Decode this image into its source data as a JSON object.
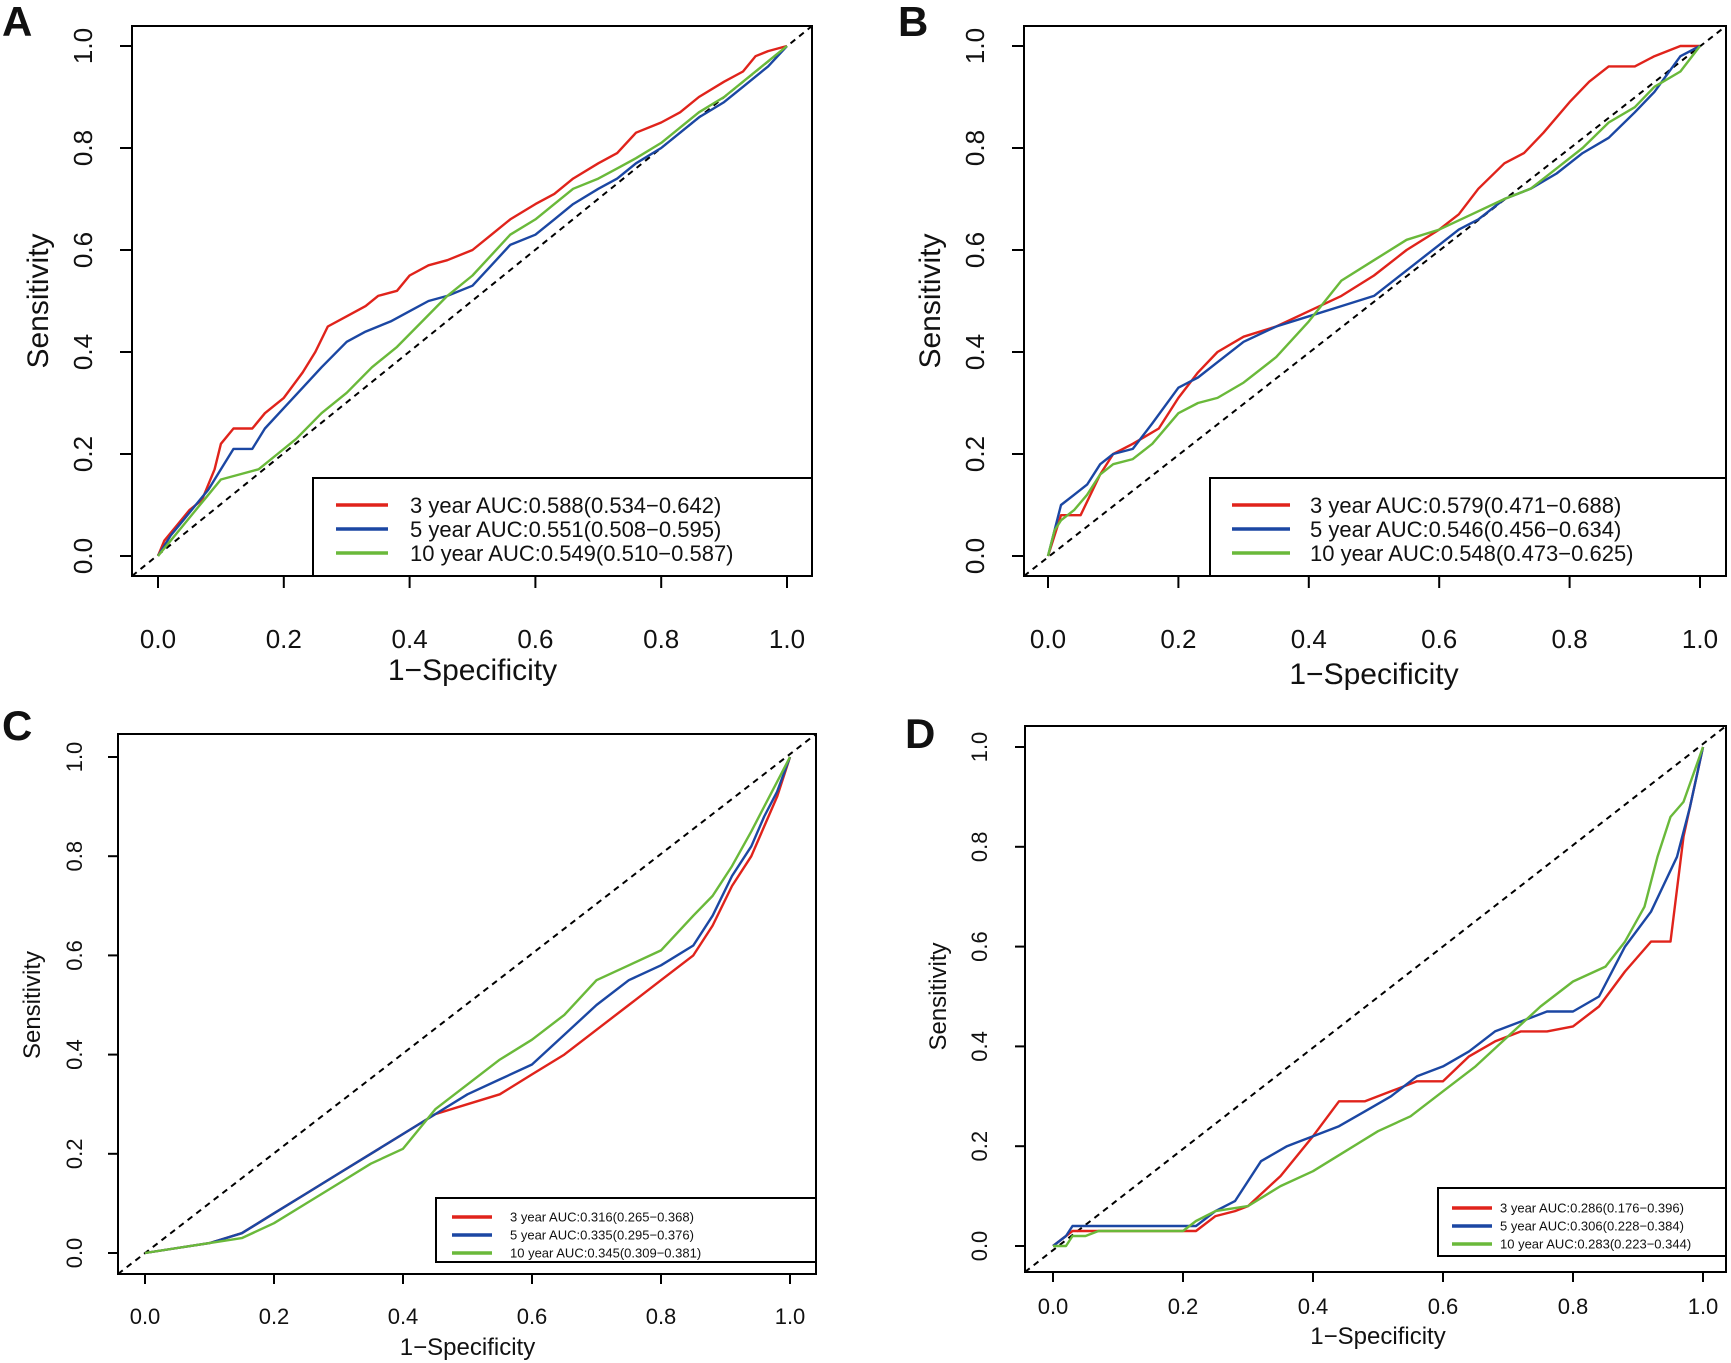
{
  "figure": {
    "panel_count": 4
  },
  "chart_data": [
    {
      "panel": "A",
      "type": "line",
      "xlabel": "1−Specificity",
      "ylabel": "Sensitivity",
      "xlim": [
        0,
        1
      ],
      "ylim": [
        0,
        1
      ],
      "xticks": [
        "0.0",
        "0.2",
        "0.4",
        "0.6",
        "0.8",
        "1.0"
      ],
      "yticks": [
        "0.0",
        "0.2",
        "0.4",
        "0.6",
        "0.8",
        "1.0"
      ],
      "reference_line": "diagonal",
      "legend_position": "bottom-right",
      "series": [
        {
          "name": "3 year AUC:0.588(0.534−0.642)",
          "color": "#e0231b",
          "x": [
            0,
            0.01,
            0.03,
            0.05,
            0.07,
            0.09,
            0.1,
            0.12,
            0.15,
            0.17,
            0.2,
            0.23,
            0.25,
            0.27,
            0.3,
            0.33,
            0.35,
            0.38,
            0.4,
            0.43,
            0.46,
            0.5,
            0.53,
            0.56,
            0.6,
            0.63,
            0.66,
            0.7,
            0.73,
            0.76,
            0.8,
            0.83,
            0.86,
            0.9,
            0.93,
            0.95,
            0.97,
            1.0
          ],
          "y": [
            0,
            0.03,
            0.06,
            0.09,
            0.11,
            0.17,
            0.22,
            0.25,
            0.25,
            0.28,
            0.31,
            0.36,
            0.4,
            0.45,
            0.47,
            0.49,
            0.51,
            0.52,
            0.55,
            0.57,
            0.58,
            0.6,
            0.63,
            0.66,
            0.69,
            0.71,
            0.74,
            0.77,
            0.79,
            0.83,
            0.85,
            0.87,
            0.9,
            0.93,
            0.95,
            0.98,
            0.99,
            1.0
          ]
        },
        {
          "name": "5 year AUC:0.551(0.508−0.595)",
          "color": "#1b47a3",
          "x": [
            0,
            0.02,
            0.04,
            0.06,
            0.08,
            0.1,
            0.12,
            0.15,
            0.17,
            0.2,
            0.23,
            0.26,
            0.3,
            0.33,
            0.37,
            0.4,
            0.43,
            0.46,
            0.5,
            0.53,
            0.56,
            0.6,
            0.63,
            0.66,
            0.7,
            0.73,
            0.76,
            0.8,
            0.83,
            0.86,
            0.9,
            0.93,
            0.97,
            1.0
          ],
          "y": [
            0,
            0.04,
            0.07,
            0.1,
            0.13,
            0.17,
            0.21,
            0.21,
            0.25,
            0.29,
            0.33,
            0.37,
            0.42,
            0.44,
            0.46,
            0.48,
            0.5,
            0.51,
            0.53,
            0.57,
            0.61,
            0.63,
            0.66,
            0.69,
            0.72,
            0.74,
            0.77,
            0.8,
            0.83,
            0.86,
            0.89,
            0.92,
            0.96,
            1.0
          ]
        },
        {
          "name": "10 year AUC:0.549(0.510−0.587)",
          "color": "#6ab93a",
          "x": [
            0,
            0.02,
            0.04,
            0.06,
            0.08,
            0.1,
            0.13,
            0.16,
            0.19,
            0.22,
            0.26,
            0.3,
            0.34,
            0.38,
            0.42,
            0.46,
            0.5,
            0.53,
            0.56,
            0.6,
            0.63,
            0.66,
            0.7,
            0.73,
            0.76,
            0.8,
            0.83,
            0.86,
            0.9,
            0.93,
            0.96,
            0.98,
            1.0
          ],
          "y": [
            0,
            0.03,
            0.06,
            0.09,
            0.12,
            0.15,
            0.16,
            0.17,
            0.2,
            0.23,
            0.28,
            0.32,
            0.37,
            0.41,
            0.46,
            0.51,
            0.55,
            0.59,
            0.63,
            0.66,
            0.69,
            0.72,
            0.74,
            0.76,
            0.78,
            0.81,
            0.84,
            0.87,
            0.9,
            0.93,
            0.96,
            0.98,
            1.0
          ]
        }
      ]
    },
    {
      "panel": "B",
      "type": "line",
      "xlabel": "1−Specificity",
      "ylabel": "Sensitivity",
      "xlim": [
        0,
        1
      ],
      "ylim": [
        0,
        1
      ],
      "xticks": [
        "0.0",
        "0.2",
        "0.4",
        "0.6",
        "0.8",
        "1.0"
      ],
      "yticks": [
        "0.0",
        "0.2",
        "0.4",
        "0.6",
        "0.8",
        "1.0"
      ],
      "reference_line": "diagonal",
      "legend_position": "bottom-right",
      "series": [
        {
          "name": "3 year AUC:0.579(0.471−0.688)",
          "color": "#e0231b",
          "x": [
            0,
            0.01,
            0.02,
            0.05,
            0.08,
            0.1,
            0.13,
            0.17,
            0.2,
            0.23,
            0.26,
            0.3,
            0.35,
            0.4,
            0.45,
            0.5,
            0.55,
            0.6,
            0.63,
            0.66,
            0.7,
            0.73,
            0.76,
            0.8,
            0.83,
            0.86,
            0.9,
            0.93,
            0.97,
            1.0
          ],
          "y": [
            0,
            0.04,
            0.08,
            0.08,
            0.16,
            0.2,
            0.22,
            0.25,
            0.31,
            0.36,
            0.4,
            0.43,
            0.45,
            0.48,
            0.51,
            0.55,
            0.6,
            0.64,
            0.67,
            0.72,
            0.77,
            0.79,
            0.83,
            0.89,
            0.93,
            0.96,
            0.96,
            0.98,
            1.0,
            1.0
          ]
        },
        {
          "name": "5 year AUC:0.546(0.456−0.634)",
          "color": "#1b47a3",
          "x": [
            0,
            0.01,
            0.02,
            0.04,
            0.06,
            0.08,
            0.1,
            0.13,
            0.16,
            0.2,
            0.23,
            0.26,
            0.3,
            0.35,
            0.4,
            0.45,
            0.5,
            0.55,
            0.6,
            0.63,
            0.66,
            0.7,
            0.74,
            0.78,
            0.82,
            0.86,
            0.9,
            0.93,
            0.97,
            1.0
          ],
          "y": [
            0,
            0.05,
            0.1,
            0.12,
            0.14,
            0.18,
            0.2,
            0.21,
            0.26,
            0.33,
            0.35,
            0.38,
            0.42,
            0.45,
            0.47,
            0.49,
            0.51,
            0.56,
            0.61,
            0.64,
            0.66,
            0.7,
            0.72,
            0.75,
            0.79,
            0.82,
            0.87,
            0.91,
            0.98,
            1.0
          ]
        },
        {
          "name": "10 year AUC:0.548(0.473−0.625)",
          "color": "#6ab93a",
          "x": [
            0,
            0.01,
            0.02,
            0.04,
            0.06,
            0.08,
            0.1,
            0.13,
            0.16,
            0.2,
            0.23,
            0.26,
            0.3,
            0.35,
            0.4,
            0.45,
            0.5,
            0.55,
            0.6,
            0.65,
            0.7,
            0.74,
            0.78,
            0.82,
            0.86,
            0.9,
            0.93,
            0.97,
            1.0
          ],
          "y": [
            0,
            0.05,
            0.07,
            0.09,
            0.12,
            0.16,
            0.18,
            0.19,
            0.22,
            0.28,
            0.3,
            0.31,
            0.34,
            0.39,
            0.46,
            0.54,
            0.58,
            0.62,
            0.64,
            0.67,
            0.7,
            0.72,
            0.76,
            0.8,
            0.85,
            0.88,
            0.92,
            0.95,
            1.0
          ]
        }
      ]
    },
    {
      "panel": "C",
      "type": "line",
      "xlabel": "1−Specificity",
      "ylabel": "Sensitivity",
      "xlim": [
        0,
        1
      ],
      "ylim": [
        0,
        1
      ],
      "xticks": [
        "0.0",
        "0.2",
        "0.4",
        "0.6",
        "0.8",
        "1.0"
      ],
      "yticks": [
        "0.0",
        "0.2",
        "0.4",
        "0.6",
        "0.8",
        "1.0"
      ],
      "reference_line": "diagonal",
      "legend_position": "bottom-right",
      "series": [
        {
          "name": "3 year AUC:0.316(0.265−0.368)",
          "color": "#e0231b",
          "x": [
            0,
            0.05,
            0.1,
            0.15,
            0.2,
            0.25,
            0.3,
            0.35,
            0.4,
            0.45,
            0.5,
            0.55,
            0.6,
            0.65,
            0.7,
            0.75,
            0.8,
            0.85,
            0.88,
            0.91,
            0.94,
            0.96,
            0.98,
            1.0
          ],
          "y": [
            0,
            0.01,
            0.02,
            0.04,
            0.08,
            0.12,
            0.16,
            0.2,
            0.24,
            0.28,
            0.3,
            0.32,
            0.36,
            0.4,
            0.45,
            0.5,
            0.55,
            0.6,
            0.66,
            0.74,
            0.8,
            0.86,
            0.92,
            1.0
          ]
        },
        {
          "name": "5 year AUC:0.335(0.295−0.376)",
          "color": "#1b47a3",
          "x": [
            0,
            0.05,
            0.1,
            0.15,
            0.2,
            0.25,
            0.3,
            0.35,
            0.4,
            0.45,
            0.5,
            0.55,
            0.6,
            0.65,
            0.7,
            0.75,
            0.8,
            0.85,
            0.88,
            0.91,
            0.94,
            0.96,
            0.98,
            1.0
          ],
          "y": [
            0,
            0.01,
            0.02,
            0.04,
            0.08,
            0.12,
            0.16,
            0.2,
            0.24,
            0.28,
            0.32,
            0.35,
            0.38,
            0.44,
            0.5,
            0.55,
            0.58,
            0.62,
            0.68,
            0.76,
            0.82,
            0.88,
            0.93,
            1.0
          ]
        },
        {
          "name": "10 year AUC:0.345(0.309−0.381)",
          "color": "#6ab93a",
          "x": [
            0,
            0.05,
            0.1,
            0.15,
            0.2,
            0.25,
            0.3,
            0.35,
            0.4,
            0.45,
            0.5,
            0.55,
            0.6,
            0.65,
            0.7,
            0.75,
            0.8,
            0.85,
            0.88,
            0.91,
            0.94,
            0.96,
            0.98,
            1.0
          ],
          "y": [
            0,
            0.01,
            0.02,
            0.03,
            0.06,
            0.1,
            0.14,
            0.18,
            0.21,
            0.29,
            0.34,
            0.39,
            0.43,
            0.48,
            0.55,
            0.58,
            0.61,
            0.68,
            0.72,
            0.78,
            0.85,
            0.9,
            0.95,
            1.0
          ]
        }
      ]
    },
    {
      "panel": "D",
      "type": "line",
      "xlabel": "1−Specificity",
      "ylabel": "Sensitivity",
      "xlim": [
        0,
        1
      ],
      "ylim": [
        0,
        1
      ],
      "xticks": [
        "0.0",
        "0.2",
        "0.4",
        "0.6",
        "0.8",
        "1.0"
      ],
      "yticks": [
        "0.0",
        "0.2",
        "0.4",
        "0.6",
        "0.8",
        "1.0"
      ],
      "reference_line": "diagonal",
      "legend_position": "bottom-right",
      "series": [
        {
          "name": "3 year AUC:0.286(0.176−0.396)",
          "color": "#e0231b",
          "x": [
            0,
            0.02,
            0.03,
            0.05,
            0.1,
            0.15,
            0.2,
            0.22,
            0.25,
            0.28,
            0.3,
            0.35,
            0.4,
            0.44,
            0.48,
            0.52,
            0.56,
            0.6,
            0.64,
            0.68,
            0.72,
            0.76,
            0.8,
            0.84,
            0.88,
            0.92,
            0.95,
            0.97,
            1.0
          ],
          "y": [
            0,
            0.02,
            0.03,
            0.03,
            0.03,
            0.03,
            0.03,
            0.03,
            0.06,
            0.07,
            0.08,
            0.14,
            0.22,
            0.29,
            0.29,
            0.31,
            0.33,
            0.33,
            0.38,
            0.41,
            0.43,
            0.43,
            0.44,
            0.48,
            0.55,
            0.61,
            0.61,
            0.82,
            1.0
          ]
        },
        {
          "name": "5 year AUC:0.306(0.228−0.384)",
          "color": "#1b47a3",
          "x": [
            0,
            0.02,
            0.03,
            0.05,
            0.1,
            0.15,
            0.2,
            0.22,
            0.25,
            0.28,
            0.32,
            0.36,
            0.4,
            0.44,
            0.48,
            0.52,
            0.56,
            0.6,
            0.64,
            0.68,
            0.72,
            0.76,
            0.8,
            0.84,
            0.88,
            0.92,
            0.96,
            0.98,
            1.0
          ],
          "y": [
            0,
            0.02,
            0.04,
            0.04,
            0.04,
            0.04,
            0.04,
            0.04,
            0.07,
            0.09,
            0.17,
            0.2,
            0.22,
            0.24,
            0.27,
            0.3,
            0.34,
            0.36,
            0.39,
            0.43,
            0.45,
            0.47,
            0.47,
            0.5,
            0.6,
            0.67,
            0.78,
            0.88,
            1.0
          ]
        },
        {
          "name": "10 year AUC:0.283(0.223−0.344)",
          "color": "#6ab93a",
          "x": [
            0,
            0.02,
            0.03,
            0.05,
            0.07,
            0.1,
            0.15,
            0.2,
            0.22,
            0.25,
            0.3,
            0.35,
            0.4,
            0.45,
            0.5,
            0.55,
            0.6,
            0.65,
            0.7,
            0.75,
            0.8,
            0.85,
            0.88,
            0.91,
            0.93,
            0.95,
            0.97,
            1.0
          ],
          "y": [
            0,
            0.0,
            0.02,
            0.02,
            0.03,
            0.03,
            0.03,
            0.03,
            0.05,
            0.07,
            0.08,
            0.12,
            0.15,
            0.19,
            0.23,
            0.26,
            0.31,
            0.36,
            0.42,
            0.48,
            0.53,
            0.56,
            0.61,
            0.68,
            0.78,
            0.86,
            0.89,
            1.0
          ]
        }
      ]
    }
  ]
}
